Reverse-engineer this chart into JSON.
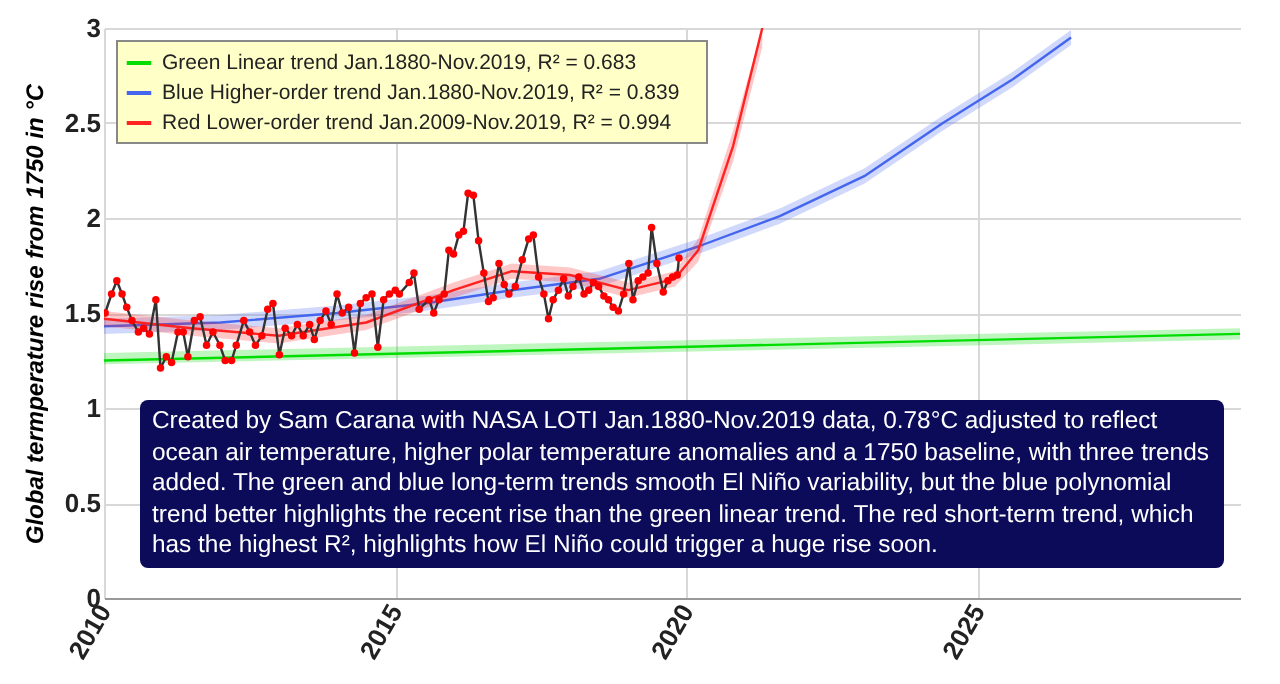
{
  "chart_data": {
    "type": "line",
    "ylabel": "Global termperature rise from 1750 in °C",
    "xlim": [
      2010,
      2029.5
    ],
    "xticks": [
      2010,
      2015,
      2020,
      2025
    ],
    "ylim": [
      0,
      3
    ],
    "yticks": [
      0,
      0.5,
      1,
      1.5,
      2,
      2.5,
      3
    ],
    "grid": true,
    "legend": "top left",
    "annotations": [
      "Created by Sam Carana with NASA LOTI Jan.1880-Nov.2019 data, 0.78°C adjusted to reflect ocean air temperature, higher polar temperature anomalies and a 1750 baseline, with three trends added. The green and blue long-term trends smooth El Niño variability, but the blue polynomial trend better highlights the recent rise than the green linear trend. The red short-term trend, which has the highest R², highlights how El Niño could trigger a huge rise soon."
    ],
    "series": [
      {
        "name": "Green    Linear trend Jan.1880-Nov.2019, R² = 0.683",
        "color": "#00dd00",
        "x": [
          2010,
          2029.5
        ],
        "values": [
          1.25,
          1.39
        ],
        "lower": [
          1.23,
          1.36
        ],
        "upper": [
          1.29,
          1.42
        ]
      },
      {
        "name": "Blue    Higher-order trend Jan.1880-Nov.2019, R² = 0.839",
        "color": "#4466ee",
        "x": [
          2010,
          2012,
          2014,
          2015.5,
          2017,
          2018.5,
          2020.2,
          2021.6,
          2023.05,
          2024.4,
          2025.6,
          2026.6
        ],
        "values": [
          1.43,
          1.45,
          1.5,
          1.55,
          1.62,
          1.68,
          1.85,
          2.01,
          2.22,
          2.5,
          2.73,
          2.95
        ],
        "lower": [
          1.39,
          1.41,
          1.46,
          1.51,
          1.58,
          1.64,
          1.81,
          1.97,
          2.18,
          2.46,
          2.69,
          2.91
        ],
        "upper": [
          1.47,
          1.49,
          1.54,
          1.59,
          1.66,
          1.72,
          1.89,
          2.05,
          2.26,
          2.54,
          2.77,
          2.99
        ]
      },
      {
        "name": "Red    Lower-order trend Jan.2009-Nov.2019, R² = 0.994",
        "color": "#ff2222",
        "x": [
          2010,
          2011.5,
          2013,
          2014.5,
          2016,
          2017,
          2018,
          2019,
          2019.8,
          2020.2,
          2020.8,
          2021.3
        ],
        "values": [
          1.47,
          1.42,
          1.38,
          1.45,
          1.62,
          1.72,
          1.7,
          1.62,
          1.68,
          1.83,
          2.38,
          3.0
        ],
        "lower": [
          1.43,
          1.38,
          1.34,
          1.41,
          1.58,
          1.68,
          1.66,
          1.58,
          1.64,
          1.77,
          2.3,
          2.9
        ],
        "upper": [
          1.51,
          1.46,
          1.42,
          1.49,
          1.66,
          1.76,
          1.74,
          1.66,
          1.72,
          1.89,
          2.46,
          3.0
        ]
      },
      {
        "color": "#333333",
        "x": [
          2010.02,
          2010.13,
          2010.22,
          2010.31,
          2010.39,
          2010.48,
          2010.59,
          2010.68,
          2010.78,
          2010.89,
          2010.97,
          2011.07,
          2011.16,
          2011.27,
          2011.36,
          2011.44,
          2011.55,
          2011.65,
          2011.76,
          2011.87,
          2011.99,
          2012.08,
          2012.19,
          2012.27,
          2012.4,
          2012.5,
          2012.6,
          2012.71,
          2012.81,
          2012.9,
          2013.01,
          2013.11,
          2013.22,
          2013.32,
          2013.42,
          2013.53,
          2013.61,
          2013.71,
          2013.81,
          2013.9,
          2014.0,
          2014.09,
          2014.2,
          2014.3,
          2014.4,
          2014.5,
          2014.6,
          2014.7,
          2014.8,
          2014.9,
          2015.0,
          2015.07,
          2015.24,
          2015.32,
          2015.41,
          2015.58,
          2015.66,
          2015.75,
          2015.84,
          2015.92,
          2016.0,
          2016.09,
          2016.17,
          2016.25,
          2016.34,
          2016.43,
          2016.52,
          2016.6,
          2016.68,
          2016.78,
          2016.87,
          2016.95,
          2017.06,
          2017.18,
          2017.29,
          2017.37,
          2017.46,
          2017.55,
          2017.63,
          2017.71,
          2017.8,
          2017.89,
          2017.97,
          2018.05,
          2018.15,
          2018.24,
          2018.32,
          2018.4,
          2018.49,
          2018.58,
          2018.66,
          2018.74,
          2018.83,
          2018.92,
          2019.01,
          2019.08,
          2019.17,
          2019.25,
          2019.34,
          2019.4,
          2019.49,
          2019.6,
          2019.68,
          2019.76,
          2019.84,
          2019.87
        ],
        "values": [
          1.5,
          1.6,
          1.67,
          1.6,
          1.53,
          1.46,
          1.4,
          1.42,
          1.39,
          1.57,
          1.21,
          1.27,
          1.24,
          1.4,
          1.4,
          1.27,
          1.46,
          1.48,
          1.33,
          1.4,
          1.33,
          1.25,
          1.25,
          1.33,
          1.46,
          1.4,
          1.33,
          1.38,
          1.52,
          1.55,
          1.28,
          1.42,
          1.38,
          1.44,
          1.38,
          1.44,
          1.36,
          1.46,
          1.51,
          1.44,
          1.6,
          1.5,
          1.53,
          1.29,
          1.55,
          1.58,
          1.6,
          1.32,
          1.57,
          1.6,
          1.62,
          1.6,
          1.66,
          1.71,
          1.52,
          1.57,
          1.5,
          1.57,
          1.6,
          1.83,
          1.81,
          1.91,
          1.93,
          2.13,
          2.12,
          1.88,
          1.71,
          1.56,
          1.58,
          1.76,
          1.65,
          1.6,
          1.64,
          1.78,
          1.89,
          1.91,
          1.69,
          1.6,
          1.47,
          1.57,
          1.62,
          1.68,
          1.59,
          1.64,
          1.69,
          1.6,
          1.62,
          1.66,
          1.64,
          1.59,
          1.57,
          1.53,
          1.51,
          1.6,
          1.76,
          1.57,
          1.67,
          1.69,
          1.71,
          1.95,
          1.76,
          1.61,
          1.67,
          1.69,
          1.7,
          1.79
        ]
      },
      {
        "type": "scatter",
        "color": "#ff0000",
        "marker": "circle",
        "x": [
          2010.02,
          2010.13,
          2010.22,
          2010.31,
          2010.39,
          2010.48,
          2010.59,
          2010.68,
          2010.78,
          2010.89,
          2010.97,
          2011.07,
          2011.16,
          2011.27,
          2011.36,
          2011.44,
          2011.55,
          2011.65,
          2011.76,
          2011.87,
          2011.99,
          2012.08,
          2012.19,
          2012.27,
          2012.4,
          2012.5,
          2012.6,
          2012.71,
          2012.81,
          2012.9,
          2013.01,
          2013.11,
          2013.22,
          2013.32,
          2013.42,
          2013.53,
          2013.61,
          2013.71,
          2013.81,
          2013.9,
          2014.0,
          2014.09,
          2014.2,
          2014.3,
          2014.4,
          2014.5,
          2014.6,
          2014.7,
          2014.8,
          2014.9,
          2015.0,
          2015.07,
          2015.24,
          2015.32,
          2015.41,
          2015.58,
          2015.66,
          2015.75,
          2015.84,
          2015.92,
          2016.0,
          2016.09,
          2016.17,
          2016.25,
          2016.34,
          2016.43,
          2016.52,
          2016.6,
          2016.68,
          2016.78,
          2016.87,
          2016.95,
          2017.06,
          2017.18,
          2017.29,
          2017.37,
          2017.46,
          2017.55,
          2017.63,
          2017.71,
          2017.8,
          2017.89,
          2017.97,
          2018.05,
          2018.15,
          2018.24,
          2018.32,
          2018.4,
          2018.49,
          2018.58,
          2018.66,
          2018.74,
          2018.83,
          2018.92,
          2019.01,
          2019.08,
          2019.17,
          2019.25,
          2019.34,
          2019.4,
          2019.49,
          2019.6,
          2019.68,
          2019.76,
          2019.84,
          2019.87
        ],
        "values": [
          1.5,
          1.6,
          1.67,
          1.6,
          1.53,
          1.46,
          1.4,
          1.42,
          1.39,
          1.57,
          1.21,
          1.27,
          1.24,
          1.4,
          1.4,
          1.27,
          1.46,
          1.48,
          1.33,
          1.4,
          1.33,
          1.25,
          1.25,
          1.33,
          1.46,
          1.4,
          1.33,
          1.38,
          1.52,
          1.55,
          1.28,
          1.42,
          1.38,
          1.44,
          1.38,
          1.44,
          1.36,
          1.46,
          1.51,
          1.44,
          1.6,
          1.5,
          1.53,
          1.29,
          1.55,
          1.58,
          1.6,
          1.32,
          1.57,
          1.6,
          1.62,
          1.6,
          1.66,
          1.71,
          1.52,
          1.57,
          1.5,
          1.57,
          1.6,
          1.83,
          1.81,
          1.91,
          1.93,
          2.13,
          2.12,
          1.88,
          1.71,
          1.56,
          1.58,
          1.76,
          1.65,
          1.6,
          1.64,
          1.78,
          1.89,
          1.91,
          1.69,
          1.6,
          1.47,
          1.57,
          1.62,
          1.68,
          1.59,
          1.64,
          1.69,
          1.6,
          1.62,
          1.66,
          1.64,
          1.59,
          1.57,
          1.53,
          1.51,
          1.6,
          1.76,
          1.57,
          1.67,
          1.69,
          1.71,
          1.95,
          1.76,
          1.61,
          1.67,
          1.69,
          1.7,
          1.79
        ]
      }
    ]
  }
}
